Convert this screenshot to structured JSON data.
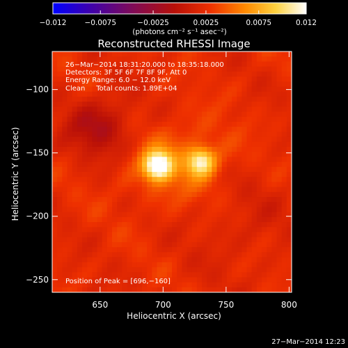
{
  "chart_data": {
    "type": "heatmap",
    "title": "Reconstructed RHESSI Image",
    "xlabel": "Heliocentric X (arcsec)",
    "ylabel": "Heliocentric Y (arcsec)",
    "xlim": [
      612,
      802
    ],
    "ylim": [
      -260,
      -70
    ],
    "x_ticks": [
      650,
      700,
      750,
      800
    ],
    "x_tick_labels": [
      "650",
      "700",
      "750",
      "800"
    ],
    "y_ticks": [
      -100,
      -150,
      -200,
      -250
    ],
    "y_tick_labels": [
      "−100",
      "−150",
      "−200",
      "−250"
    ],
    "colorbar": {
      "range": [
        -0.012,
        0.012
      ],
      "ticks": [
        -0.012,
        -0.0075,
        -0.0025,
        0.0025,
        0.0075,
        0.012
      ],
      "tick_labels": [
        "−0.012",
        "−0.0075",
        "−0.0025",
        "0.0025",
        "0.0075",
        "0.012"
      ],
      "units_label": "(photons cm⁻² s⁻¹ asec⁻²)",
      "colormap": [
        "#0000ff",
        "#3b00b0",
        "#7a0a5e",
        "#b81008",
        "#ee3000",
        "#ff8a00",
        "#ffd240",
        "#ffffff"
      ]
    },
    "sources": [
      {
        "x": 696,
        "y": -160,
        "peak": 0.012
      },
      {
        "x": 730,
        "y": -157,
        "peak": 0.0085
      }
    ],
    "annotations": [
      "26−Mar−2014 18:31:20.000 to 18:35:18.000",
      "Detectors: 3F 5F 6F 7F 8F 9F, Att 0",
      "Energy Range: 6.0 − 12.0 keV",
      "Clean     Total counts: 1.89E+04"
    ],
    "peak_label": "Position of Peak = [696,−160]",
    "timestamp": "27−Mar−2014 12:23"
  }
}
